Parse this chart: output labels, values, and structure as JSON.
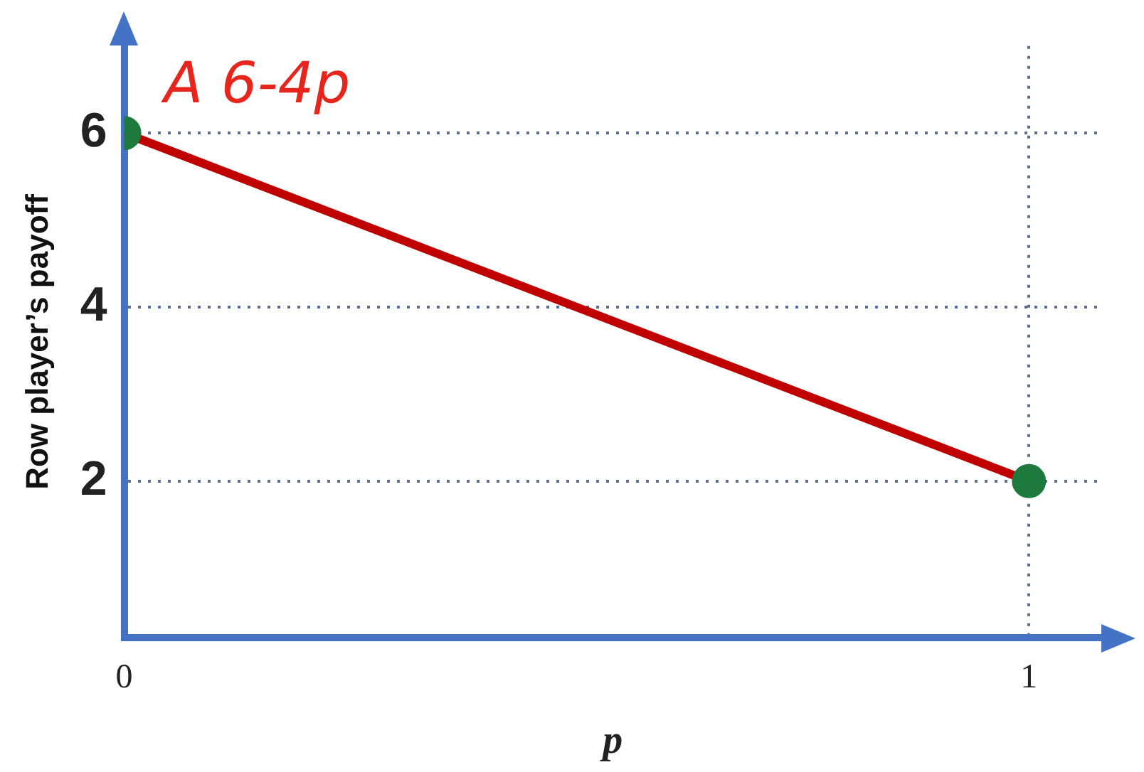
{
  "chart_data": {
    "type": "line",
    "xlabel": "p",
    "ylabel": "Row player’s payoff",
    "x": [
      0,
      1
    ],
    "series": [
      {
        "color": "#c00000",
        "colors": [
          "#1e7a3c",
          "#1e7a3c"
        ],
        "values": [
          6,
          2
        ]
      }
    ],
    "xlim": [
      0,
      1.08
    ],
    "xticks": [
      0,
      1
    ],
    "ylim": [
      0.2,
      7
    ],
    "yticks": [
      2,
      4,
      6
    ],
    "grid": true,
    "marker": "circle",
    "line_style": "solid",
    "annotations": [
      {
        "text": "A 6-4p",
        "x": 0,
        "y": 6
      }
    ]
  }
}
